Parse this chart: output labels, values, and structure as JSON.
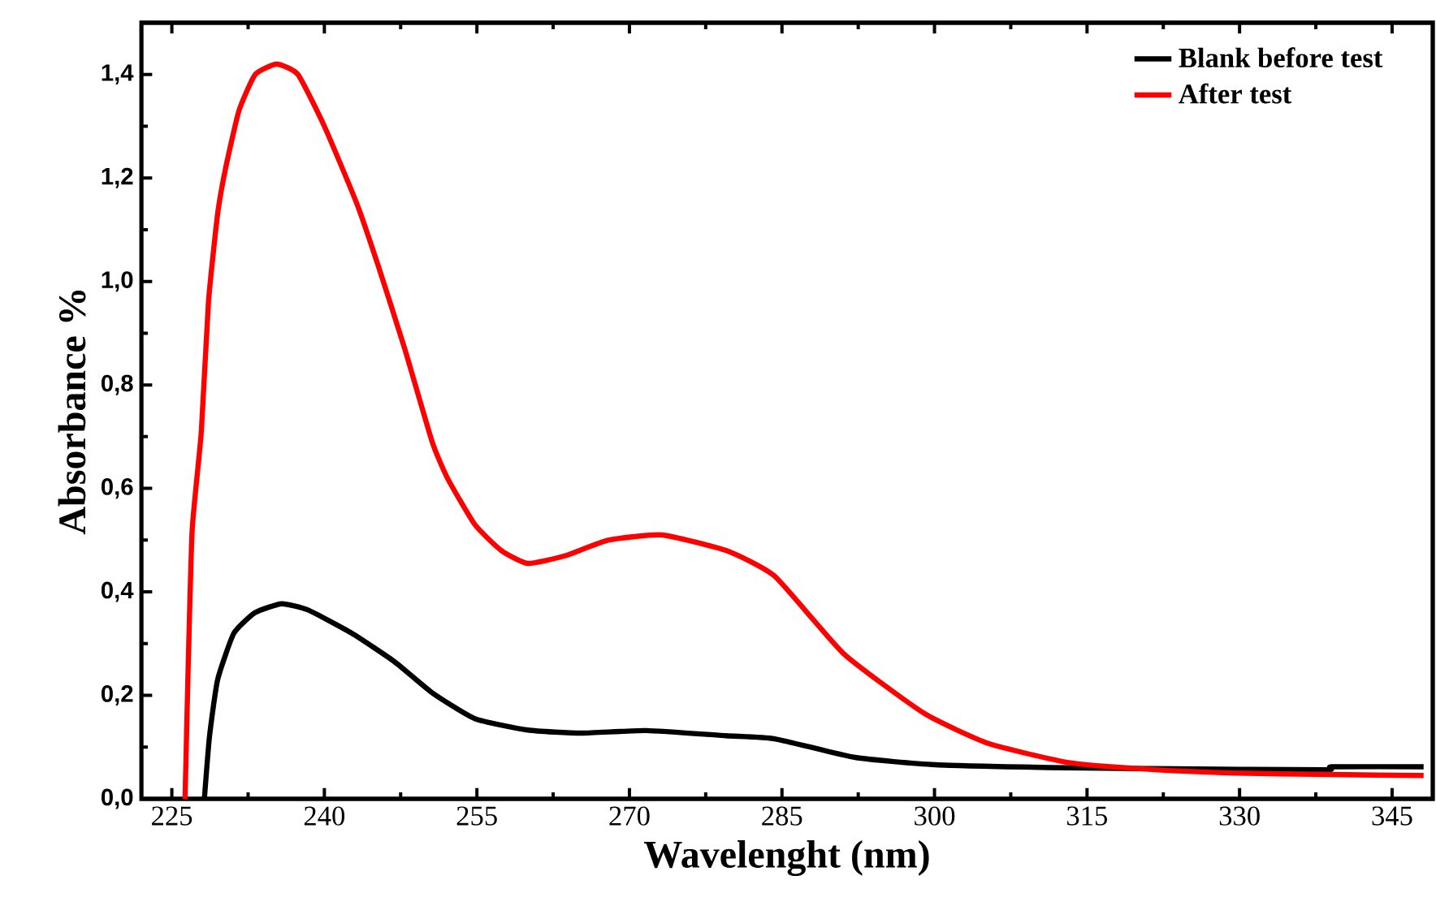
{
  "chart_data": {
    "type": "line",
    "xlabel": "Wavelenght (nm)",
    "ylabel": "Absorbance %",
    "xlim": [
      222,
      349
    ],
    "ylim": [
      0,
      1.5
    ],
    "xticks": [
      225,
      240,
      255,
      270,
      285,
      300,
      315,
      330,
      345
    ],
    "yticks": [
      {
        "value": 0,
        "label": "0,0"
      },
      {
        "value": 0.2,
        "label": "0,2"
      },
      {
        "value": 0.4,
        "label": "0,4"
      },
      {
        "value": 0.6,
        "label": "0,6"
      },
      {
        "value": 0.8,
        "label": "0,8"
      },
      {
        "value": 1.0,
        "label": "1,0"
      },
      {
        "value": 1.2,
        "label": "1,2"
      },
      {
        "value": 1.4,
        "label": "1,4"
      }
    ],
    "legend": "top right",
    "grid": false,
    "line_style": "solid",
    "series": [
      {
        "name": "Blank before test",
        "color": "#000000",
        "x": [
          228.2,
          228.7,
          229.5,
          231.1,
          233.2,
          235.8,
          238.4,
          242.7,
          246.9,
          250.6,
          254.8,
          260.0,
          265.3,
          271.6,
          279.5,
          284.3,
          292.2,
          300.1,
          313.2,
          323.8,
          338.5,
          339.1,
          348.1
        ],
        "values": [
          0,
          0.12,
          0.23,
          0.32,
          0.36,
          0.377,
          0.365,
          0.32,
          0.265,
          0.205,
          0.155,
          0.133,
          0.127,
          0.132,
          0.122,
          0.116,
          0.08,
          0.066,
          0.06,
          0.058,
          0.056,
          0.062,
          0.062
        ]
      },
      {
        "name": "After test",
        "color": "#ff0000",
        "x": [
          226.3,
          226.6,
          227.0,
          227.9,
          228.6,
          229.5,
          230.3,
          231.6,
          233.2,
          235.3,
          237.4,
          240.0,
          243.2,
          245.3,
          247.9,
          250.6,
          252.1,
          254.8,
          257.4,
          260.0,
          263.7,
          267.9,
          273.2,
          279.5,
          284.3,
          291.1,
          299.0,
          305.3,
          313.2,
          321.1,
          329.0,
          339.1,
          348.1
        ],
        "values": [
          0,
          0.25,
          0.52,
          0.71,
          0.96,
          1.13,
          1.22,
          1.33,
          1.4,
          1.42,
          1.4,
          1.3,
          1.15,
          1.03,
          0.87,
          0.69,
          0.62,
          0.53,
          0.48,
          0.455,
          0.47,
          0.5,
          0.51,
          0.48,
          0.43,
          0.28,
          0.165,
          0.107,
          0.07,
          0.057,
          0.05,
          0.047,
          0.045
        ]
      }
    ]
  }
}
